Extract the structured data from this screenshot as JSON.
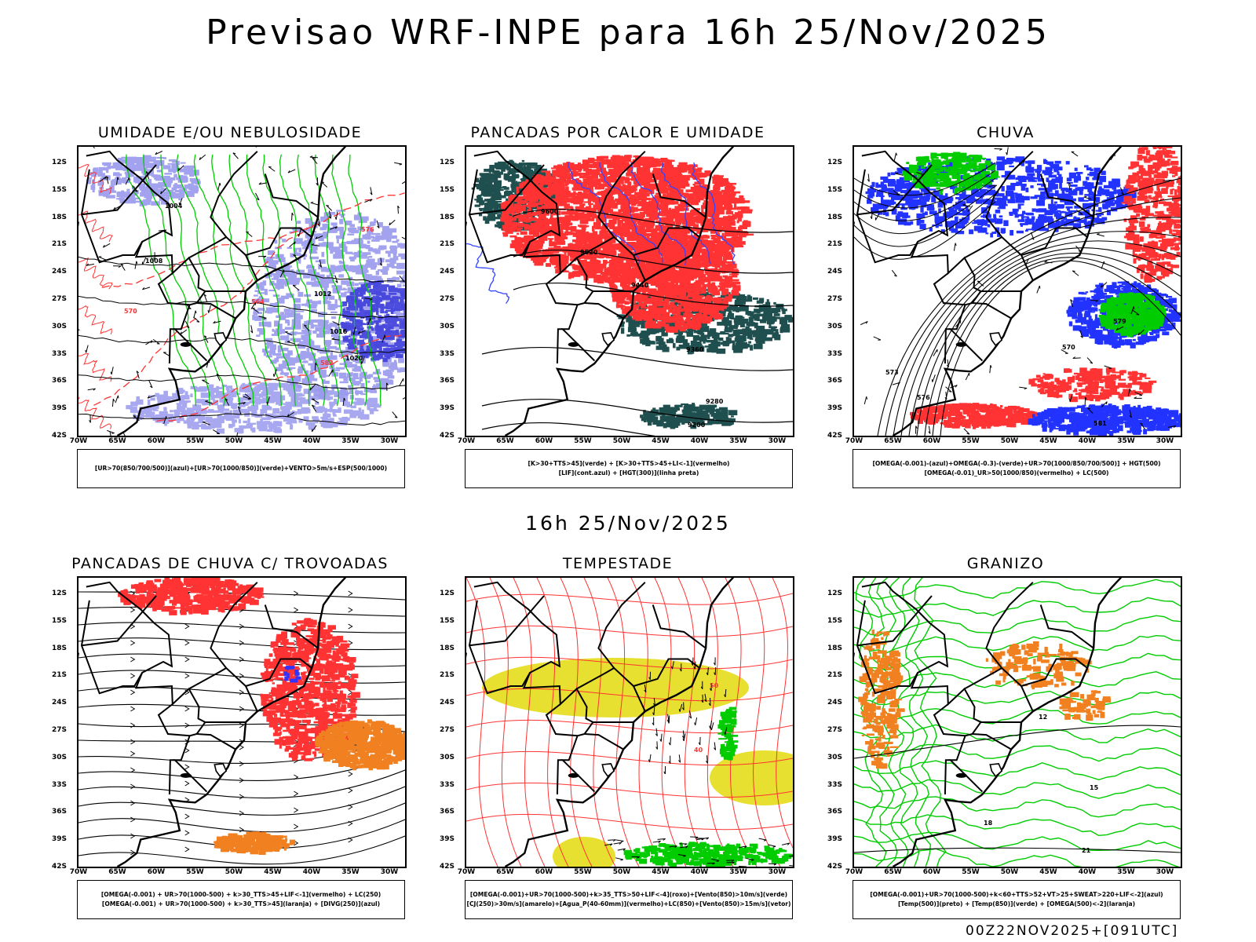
{
  "header": {
    "title": "Previsao WRF-INPE  para 16h 25/Nov/2025",
    "middle_label": "16h 25/Nov/2025",
    "run_stamp": "00Z22NOV2025+[091UTC]"
  },
  "axes": {
    "lat_labels": [
      "12S",
      "15S",
      "18S",
      "21S",
      "24S",
      "27S",
      "30S",
      "33S",
      "36S",
      "39S",
      "42S"
    ],
    "lon_labels": [
      "70W",
      "65W",
      "60W",
      "55W",
      "50W",
      "45W",
      "40W",
      "35W",
      "30W"
    ]
  },
  "panels": [
    {
      "title": "UMIDADE E/OU NEBULOSIDADE",
      "legend": [
        "[UR>70(850/700/500)](azul)+[UR>70(1000/850)](verde)+VENTO>5m/s+ESP(500/1000)"
      ]
    },
    {
      "title": "PANCADAS POR CALOR E UMIDADE",
      "legend": [
        "[K>30+TTS>45](verde) + [K>30+TTS>45+LI<-1](vermelho)",
        "[LIF](cont.azul) + [HGT(300)](linha preta)"
      ]
    },
    {
      "title": "CHUVA",
      "legend": [
        "[OMEGA(-0.001)-(azul)+OMEGA(-0.3)-(verde)+UR>70(1000/850/700/500)] + HGT(500)",
        "[OMEGA(-0.01)_UR>50(1000/850)(vermelho) + LC(500)"
      ]
    },
    {
      "title": "PANCADAS DE CHUVA C/ TROVOADAS",
      "legend": [
        "[OMEGA(-0.001) + UR>70(1000-500) + k>30_TTS>45+LIF<-1](vermelho) + LC(250)",
        "[OMEGA(-0.001) + UR>70(1000-500) + k>30_TTS>45](laranja) + [DIVG(250)](azul)"
      ]
    },
    {
      "title": "TEMPESTADE",
      "legend": [
        "[OMEGA(-0.001)+UR>70(1000-500)+k>35_TTS>50+LIF<-4](roxo)+[Vento(850)>10m/s](verde)",
        "[CJ(250)>30m/s](amarelo)+[Agua_P(40-60mm)](vermelho)+LC(850)+[Vento(850)>15m/s](vetor)"
      ]
    },
    {
      "title": "GRANIZO",
      "legend": [
        "[OMEGA(-0.001)+UR>70(1000-500)+k<60+TTS>52+VT>25+SWEAT>220+LIF<-2](azul)",
        "[Temp(500)](preto) + [Temp(850)](verde) + [OMEGA(500)<-2](laranja)"
      ]
    }
  ],
  "chart_data": [
    {
      "type": "map",
      "title": "UMIDADE E/OU NEBULOSIDADE",
      "contour_labels": [
        "1004",
        "1008",
        "1012",
        "1016",
        "1020"
      ],
      "height_labels": [
        "570",
        "576",
        "582",
        "564"
      ],
      "colors": {
        "high_level_humidity": "#9999ee",
        "deep_blue": "#4444dd",
        "low_level_humidity": "#00cc00",
        "thickness": "#ff3333",
        "pressure": "#000000"
      }
    },
    {
      "type": "map",
      "title": "PANCADAS POR CALOR E UMIDADE",
      "contour_labels": [
        "9600",
        "9520",
        "9440",
        "9360",
        "9280",
        "9200"
      ],
      "colors": {
        "unstable_li": "#ff3333",
        "unstable": "#1f4f4f",
        "lifted_index": "#3344ff",
        "hgt300": "#000000"
      }
    },
    {
      "type": "map",
      "title": "CHUVA",
      "contour_labels": [
        "570",
        "573",
        "576",
        "579",
        "581"
      ],
      "colors": {
        "omega_blue": "#2233ff",
        "omega_green": "#00cc00",
        "omega_red": "#ff3333",
        "hgt500": "#000000"
      }
    },
    {
      "type": "map",
      "title": "PANCADAS DE CHUVA C/ TROVOADAS",
      "colors": {
        "red": "#ff3333",
        "orange": "#f08020",
        "blue": "#3333ff",
        "streamlines": "#000000"
      }
    },
    {
      "type": "map",
      "title": "TEMPESTADE",
      "contour_labels": [
        "40",
        "50"
      ],
      "colors": {
        "jet": "#e8e030",
        "water": "#ff3333",
        "wind850": "#00cc00",
        "vectors": "#000000"
      }
    },
    {
      "type": "map",
      "title": "GRANIZO",
      "contour_labels": [
        "12",
        "15",
        "18",
        "21"
      ],
      "colors": {
        "temp850": "#00cc00",
        "omega500": "#f08020",
        "temp500": "#000000"
      }
    }
  ]
}
